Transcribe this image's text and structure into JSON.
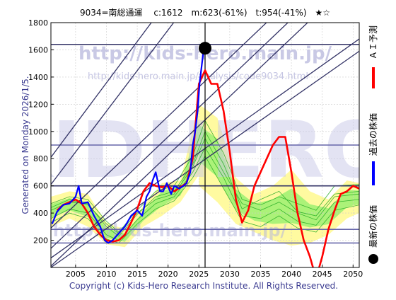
{
  "chart_data": {
    "type": "line",
    "title": "9034=南総通運　 c:1612　m:623(-61%)　t:954(-41%)　★☆",
    "side_label": "Generated on Monday 2026/1/5.",
    "copyright": "Copyright (c) Kids-Hero Research Institute. All Rights Reserved.",
    "watermarks": [
      "http://kids-hero.main.jp/",
      "http://kids-hero.main.jp/analysis/code9034.html",
      "KIDHERO",
      "http://kids-hero.main.jp/"
    ],
    "xlim": [
      2001,
      2051
    ],
    "ylim": [
      0,
      1800
    ],
    "x_ticks": [
      2005,
      2010,
      2015,
      2020,
      2025,
      2030,
      2035,
      2040,
      2045,
      2050
    ],
    "y_ticks": [
      200,
      400,
      600,
      800,
      1000,
      1200,
      1400,
      1600,
      1800
    ],
    "grid": true,
    "legend_position": "right",
    "legend": [
      {
        "label": "ＡＩ予測",
        "color": "#ff0000",
        "marker": "line"
      },
      {
        "label": "過去の株価",
        "color": "#0000ff",
        "marker": "line"
      },
      {
        "label": "最新の株価",
        "color": "#000000",
        "marker": "dot"
      }
    ],
    "latest_point": {
      "x": 2026.0,
      "y": 1612
    },
    "horizontal_levels": [
      {
        "y": 1640,
        "color": "#333366"
      },
      {
        "y": 900,
        "color": "#6666aa"
      },
      {
        "y": 600,
        "color": "#333366"
      },
      {
        "y": 280,
        "color": "#6666aa"
      },
      {
        "y": 180,
        "color": "#6666aa"
      }
    ],
    "trend_lines": [
      {
        "points": [
          [
            2001,
            290
          ],
          [
            2051,
            2450
          ]
        ]
      },
      {
        "points": [
          [
            2001,
            140
          ],
          [
            2051,
            2300
          ]
        ]
      },
      {
        "points": [
          [
            2001,
            10
          ],
          [
            2051,
            2160
          ]
        ]
      },
      {
        "points": [
          [
            2001,
            70
          ],
          [
            2051,
            1680
          ]
        ]
      },
      {
        "points": [
          [
            2001,
            0
          ],
          [
            2051,
            1590
          ]
        ]
      },
      {
        "points": [
          [
            2001,
            610
          ],
          [
            2051,
            3600
          ]
        ]
      },
      {
        "points": [
          [
            2001,
            810
          ],
          [
            2051,
            3850
          ]
        ]
      }
    ],
    "band_fill_color": "#fffaa0",
    "band_line_color": "#22aa22",
    "band_fill_green": "#88ee66",
    "bands": [
      {
        "x": [
          2001,
          2004,
          2007,
          2010,
          2013,
          2016,
          2019,
          2022,
          2025
        ],
        "upper": [
          520,
          560,
          540,
          330,
          280,
          450,
          620,
          640,
          1200
        ],
        "lower": [
          300,
          360,
          300,
          170,
          150,
          300,
          380,
          480,
          680
        ]
      },
      {
        "x": [
          2025,
          2028,
          2031,
          2034,
          2037,
          2040,
          2043,
          2046,
          2049,
          2051
        ],
        "upper": [
          1200,
          1100,
          660,
          540,
          600,
          720,
          560,
          500,
          640,
          620
        ],
        "lower": [
          600,
          480,
          320,
          260,
          200,
          160,
          180,
          240,
          360,
          400
        ]
      }
    ],
    "green_lines": [
      {
        "x": [
          2001,
          2004,
          2007,
          2010,
          2012,
          2015,
          2018,
          2021,
          2024,
          2026,
          2029,
          2032,
          2035,
          2038,
          2041,
          2044,
          2047,
          2051
        ],
        "y": [
          420,
          480,
          470,
          300,
          230,
          390,
          520,
          560,
          760,
          1000,
          760,
          430,
          500,
          560,
          410,
          380,
          540,
          560
        ]
      },
      {
        "x": [
          2001,
          2004,
          2007,
          2010,
          2012,
          2015,
          2018,
          2021,
          2024,
          2026,
          2029,
          2032,
          2035,
          2038,
          2041,
          2044,
          2047,
          2051
        ],
        "y": [
          360,
          430,
          400,
          240,
          200,
          350,
          470,
          520,
          700,
          880,
          660,
          380,
          360,
          430,
          340,
          310,
          480,
          500
        ]
      },
      {
        "x": [
          2001,
          2004,
          2007,
          2010,
          2012,
          2015,
          2018,
          2021,
          2024,
          2026,
          2029,
          2032,
          2035,
          2038,
          2041,
          2044,
          2047,
          2051
        ],
        "y": [
          470,
          520,
          500,
          340,
          260,
          420,
          560,
          600,
          820,
          1080,
          840,
          500,
          460,
          520,
          470,
          420,
          600,
          610
        ]
      },
      {
        "x": [
          2001,
          2004,
          2007,
          2010,
          2012,
          2015,
          2018,
          2021,
          2024,
          2026,
          2029,
          2032,
          2035,
          2038,
          2041,
          2044,
          2047,
          2051
        ],
        "y": [
          330,
          400,
          360,
          210,
          180,
          320,
          430,
          490,
          660,
          820,
          580,
          340,
          300,
          380,
          290,
          260,
          420,
          460
        ]
      },
      {
        "x": [
          2001,
          2004,
          2007,
          2010,
          2012,
          2015,
          2018,
          2021,
          2024,
          2026,
          2029,
          2032,
          2035,
          2038,
          2041,
          2044,
          2047,
          2051
        ],
        "y": [
          440,
          500,
          460,
          320,
          250,
          400,
          500,
          540,
          740,
          950,
          700,
          470,
          420,
          480,
          400,
          350,
          520,
          540
        ]
      }
    ],
    "series": [
      {
        "name": "ＡＩ予測",
        "color": "#ff0000",
        "x": [
          2002,
          2003,
          2004,
          2005,
          2006,
          2007,
          2008,
          2009,
          2010,
          2011,
          2012,
          2013,
          2014,
          2015,
          2016,
          2017,
          2018,
          2019,
          2020,
          2021,
          2022,
          2023,
          2024,
          2025,
          2026,
          2027,
          2028,
          2029,
          2030,
          2031,
          2032,
          2033,
          2034,
          2035,
          2036,
          2037,
          2038,
          2039,
          2040,
          2041,
          2042,
          2043,
          2044,
          2045,
          2046,
          2047,
          2048,
          2049,
          2050,
          2051
        ],
        "y": [
          420,
          460,
          480,
          500,
          470,
          400,
          300,
          240,
          200,
          190,
          200,
          240,
          330,
          430,
          560,
          620,
          600,
          590,
          600,
          560,
          590,
          620,
          800,
          1350,
          1450,
          1350,
          1350,
          1150,
          850,
          500,
          330,
          420,
          600,
          700,
          800,
          900,
          960,
          960,
          700,
          400,
          200,
          80,
          -80,
          80,
          280,
          420,
          540,
          560,
          600,
          580
        ]
      },
      {
        "name": "過去の株価",
        "color": "#0000ff",
        "x": [
          2001.2,
          2002,
          2003,
          2004,
          2005,
          2005.5,
          2006,
          2007,
          2008,
          2009,
          2009.7,
          2010.3,
          2011,
          2012,
          2013,
          2014,
          2015,
          2015.8,
          2016.5,
          2017,
          2017.5,
          2018,
          2018.7,
          2019.2,
          2019.8,
          2020.5,
          2021,
          2021.8,
          2022.5,
          2023,
          2023.6,
          2024,
          2024.4,
          2024.8,
          2025.1,
          2025.5,
          2025.8
        ],
        "y": [
          320,
          410,
          460,
          470,
          520,
          600,
          470,
          480,
          380,
          300,
          200,
          180,
          200,
          250,
          300,
          380,
          420,
          380,
          520,
          560,
          640,
          700,
          560,
          560,
          620,
          540,
          600,
          580,
          600,
          620,
          700,
          900,
          1000,
          1150,
          1350,
          1500,
          1612
        ]
      }
    ]
  }
}
